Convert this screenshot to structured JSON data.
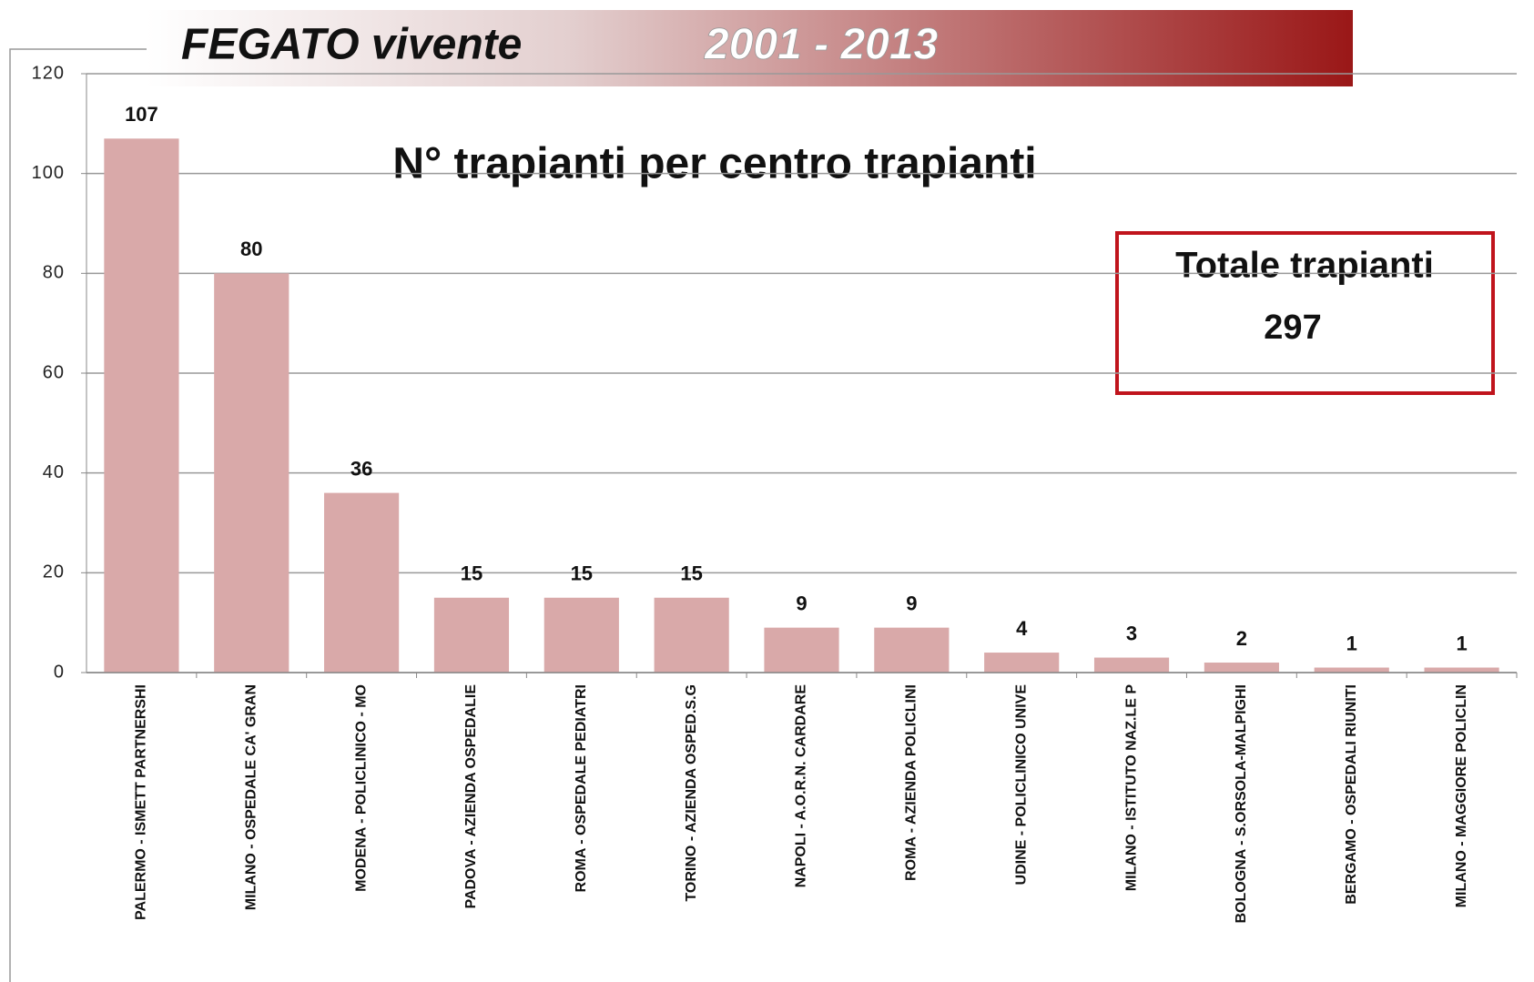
{
  "chart_data": {
    "type": "bar",
    "title": "FEGATO vivente",
    "period": "2001 - 2013",
    "subtitle": "N° trapianti per centro trapianti",
    "total_label": "Totale  trapianti",
    "total_value": 297,
    "categories": [
      "PALERMO - ISMETT PARTNERSHI",
      "MILANO - OSPEDALE CA' GRAN",
      "MODENA - POLICLINICO - MO",
      "PADOVA - AZIENDA OSPEDALIE",
      "ROMA - OSPEDALE PEDIATRI",
      "TORINO - AZIENDA OSPED.S.G",
      "NAPOLI - A.O.R.N.  CARDARE",
      "ROMA - AZIENDA POLICLINI",
      "UDINE - POLICLINICO UNIVE",
      "MILANO - ISTITUTO NAZ.LE P",
      "BOLOGNA - S.ORSOLA-MALPIGHI",
      "BERGAMO - OSPEDALI RIUNITI",
      "MILANO - MAGGIORE POLICLIN"
    ],
    "values": [
      107,
      80,
      36,
      15,
      15,
      15,
      9,
      9,
      4,
      3,
      2,
      1,
      1
    ],
    "color": "#d9a9a9",
    "ylim": [
      0,
      120
    ],
    "yticks": [
      0,
      20,
      40,
      60,
      80,
      100,
      120
    ],
    "grid": true
  }
}
